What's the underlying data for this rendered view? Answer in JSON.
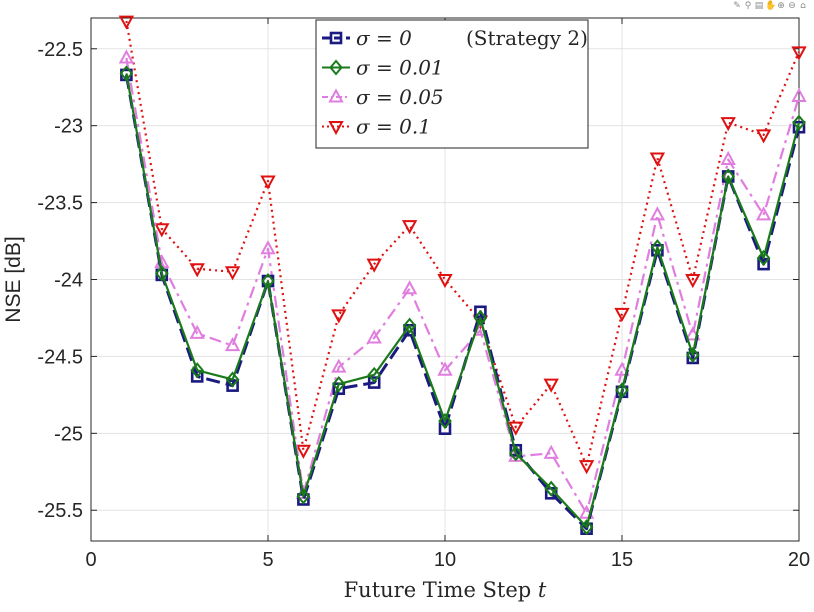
{
  "toolbar": {
    "icons": [
      "brush-icon",
      "data-tip-icon",
      "legend-icon",
      "pan-icon",
      "zoom-in-icon",
      "zoom-out-icon",
      "home-icon"
    ],
    "glyphs": [
      "✎",
      "⚲",
      "▤",
      "✋",
      "⊕",
      "⊖",
      "⌂"
    ]
  },
  "chart_data": {
    "type": "line",
    "xlabel_text": "Future Time Step ",
    "xlabel_var": "t",
    "ylabel": "NSE [dB]",
    "xlim": [
      0,
      20
    ],
    "ylim": [
      -25.7,
      -22.3
    ],
    "xticks": [
      0,
      5,
      10,
      15,
      20
    ],
    "xtick_labels": [
      "0",
      "5",
      "10",
      "15",
      "20"
    ],
    "yticks": [
      -22.5,
      -23,
      -23.5,
      -24,
      -24.5,
      -25,
      -25.5
    ],
    "ytick_labels": [
      "-22.5",
      "-23",
      "-23.5",
      "-24",
      "-24.5",
      "-25",
      "-25.5"
    ],
    "grid": true,
    "legend_position": "top-center",
    "x": [
      1,
      2,
      3,
      4,
      5,
      6,
      7,
      8,
      9,
      10,
      11,
      12,
      13,
      14,
      15,
      16,
      17,
      18,
      19,
      20
    ],
    "series": [
      {
        "name": "σ = 0",
        "note": "(Strategy 2)",
        "color": "#1a1a80",
        "dash": "dash",
        "marker": "square",
        "values": [
          -22.67,
          -23.97,
          -24.63,
          -24.69,
          -24.01,
          -25.43,
          -24.71,
          -24.67,
          -24.33,
          -24.97,
          -24.21,
          -25.11,
          -25.39,
          -25.62,
          -24.73,
          -23.81,
          -24.51,
          -23.33,
          -23.9,
          -23.01
        ]
      },
      {
        "name": "σ = 0.01",
        "color": "#1a7a1a",
        "dash": "solid",
        "marker": "diamond",
        "values": [
          -22.66,
          -23.96,
          -24.59,
          -24.65,
          -24.01,
          -25.41,
          -24.68,
          -24.62,
          -24.3,
          -24.92,
          -24.25,
          -25.13,
          -25.36,
          -25.61,
          -24.72,
          -23.79,
          -24.49,
          -23.33,
          -23.86,
          -22.98
        ]
      },
      {
        "name": "σ = 0.05",
        "color": "#e07ee0",
        "dash": "dashdot",
        "marker": "triangle-up",
        "values": [
          -22.56,
          -23.89,
          -24.35,
          -24.43,
          -23.8,
          -25.39,
          -24.57,
          -24.38,
          -24.06,
          -24.59,
          -24.33,
          -25.15,
          -25.13,
          -25.52,
          -24.59,
          -23.58,
          -24.36,
          -23.22,
          -23.58,
          -22.81
        ]
      },
      {
        "name": "σ = 0.1",
        "color": "#e01010",
        "dash": "dot",
        "marker": "triangle-down",
        "values": [
          -22.32,
          -23.67,
          -23.93,
          -23.95,
          -23.36,
          -25.11,
          -24.23,
          -23.9,
          -23.65,
          -24.0,
          -24.27,
          -24.96,
          -24.68,
          -25.21,
          -24.22,
          -23.21,
          -24.0,
          -22.98,
          -23.06,
          -22.52
        ]
      }
    ]
  }
}
